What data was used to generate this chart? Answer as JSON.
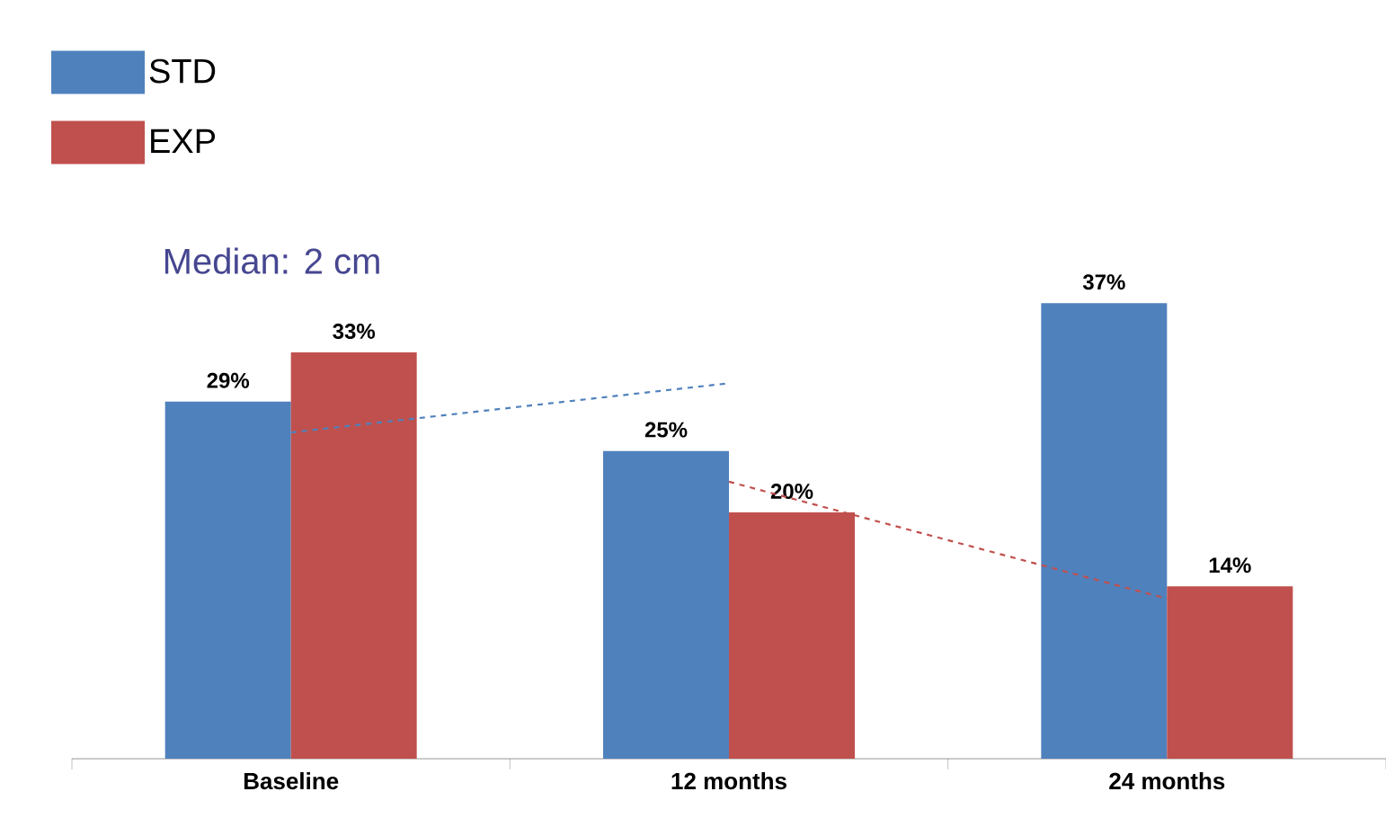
{
  "chart_data": {
    "type": "bar",
    "categories": [
      "Baseline",
      "12 months",
      "24 months"
    ],
    "series": [
      {
        "name": "STD",
        "color": "#4f81bd",
        "values": [
          29,
          25,
          37
        ],
        "value_labels": [
          "29%",
          "25%",
          "37%"
        ]
      },
      {
        "name": "EXP",
        "color": "#c0504d",
        "values": [
          33,
          20,
          14
        ],
        "value_labels": [
          "33%",
          "20%",
          "14%"
        ]
      },
      {
        "type": "line",
        "color": "#4f81bd",
        "values": [
          26.5,
          30.5,
          null
        ],
        "line_style": "dashed"
      },
      {
        "type": "line",
        "color": "#c0504d",
        "values": [
          null,
          22.5,
          13
        ],
        "line_style": "dashed"
      }
    ],
    "annotations": [
      "Median: 2 cm"
    ],
    "legend": "top left",
    "tick_labels": "x"
  }
}
